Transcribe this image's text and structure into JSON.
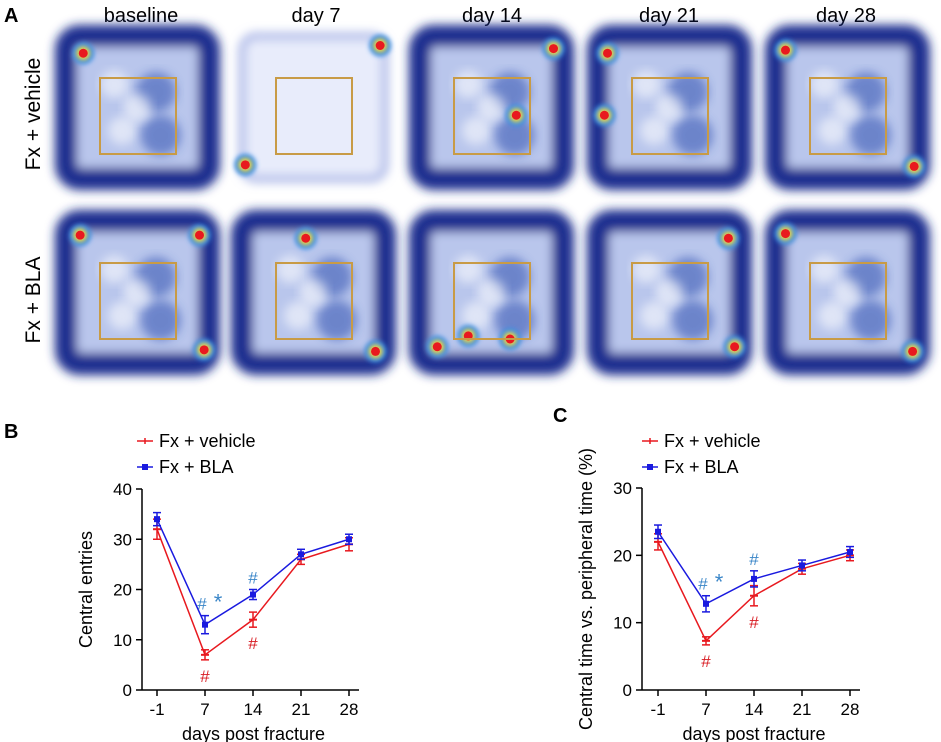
{
  "panel_a": {
    "label": "A",
    "columns": [
      "baseline",
      "day 7",
      "day 14",
      "day 21",
      "day 28"
    ],
    "rows": [
      "Fx + vehicle",
      "Fx + BLA"
    ],
    "colors": {
      "box": "#c89b46",
      "low": "#1b2f8f",
      "mid": "#3a8ee6",
      "high": "#f2d640",
      "hot": "#e8191f"
    }
  },
  "chart_data": [
    {
      "panel_label": "B",
      "type": "line",
      "categories": [
        "-1",
        "7",
        "14",
        "21",
        "28"
      ],
      "xlabel": "days post fracture",
      "ylabel": "Central entries",
      "ylim": [
        0,
        40
      ],
      "yticks": [
        "0",
        "10",
        "20",
        "30",
        "40"
      ],
      "series": [
        {
          "name": "Fx + vehicle",
          "color": "#e8191f",
          "values": [
            32,
            7,
            14,
            26,
            29
          ],
          "errors": [
            2.0,
            1.0,
            1.5,
            1.0,
            1.3
          ]
        },
        {
          "name": "Fx + BLA",
          "color": "#1a1adf",
          "values": [
            34,
            13,
            19,
            27,
            30
          ],
          "errors": [
            1.3,
            1.8,
            1.0,
            1.0,
            1.0
          ]
        }
      ],
      "annotations": [
        {
          "text": "#",
          "series": 1,
          "index": 1,
          "color": "#3a86c8"
        },
        {
          "text": "*",
          "series": 1,
          "index": 1,
          "color": "#3a86c8"
        },
        {
          "text": "#",
          "series": 1,
          "index": 2,
          "color": "#3a86c8"
        },
        {
          "text": "#",
          "series": 0,
          "index": 1,
          "color": "#d81b22"
        },
        {
          "text": "#",
          "series": 0,
          "index": 2,
          "color": "#d81b22"
        }
      ]
    },
    {
      "panel_label": "C",
      "type": "line",
      "categories": [
        "-1",
        "7",
        "14",
        "21",
        "28"
      ],
      "xlabel": "days post fracture",
      "ylabel": "Central time vs. peripheral time (%)",
      "ylim": [
        0,
        30
      ],
      "yticks": [
        "0",
        "10",
        "20",
        "30"
      ],
      "series": [
        {
          "name": "Fx + vehicle",
          "color": "#e8191f",
          "values": [
            22,
            7.3,
            14,
            18,
            20
          ],
          "errors": [
            1.2,
            0.6,
            1.5,
            0.8,
            0.8
          ]
        },
        {
          "name": "Fx + BLA",
          "color": "#1a1adf",
          "values": [
            23.5,
            12.8,
            16.5,
            18.5,
            20.5
          ],
          "errors": [
            1.0,
            1.2,
            1.2,
            0.8,
            0.8
          ]
        }
      ],
      "annotations": [
        {
          "text": "#",
          "series": 1,
          "index": 1,
          "color": "#3a86c8"
        },
        {
          "text": "*",
          "series": 1,
          "index": 1,
          "color": "#3a86c8"
        },
        {
          "text": "#",
          "series": 1,
          "index": 2,
          "color": "#3a86c8"
        },
        {
          "text": "#",
          "series": 0,
          "index": 1,
          "color": "#d81b22"
        },
        {
          "text": "#",
          "series": 0,
          "index": 2,
          "color": "#d81b22"
        }
      ]
    }
  ]
}
